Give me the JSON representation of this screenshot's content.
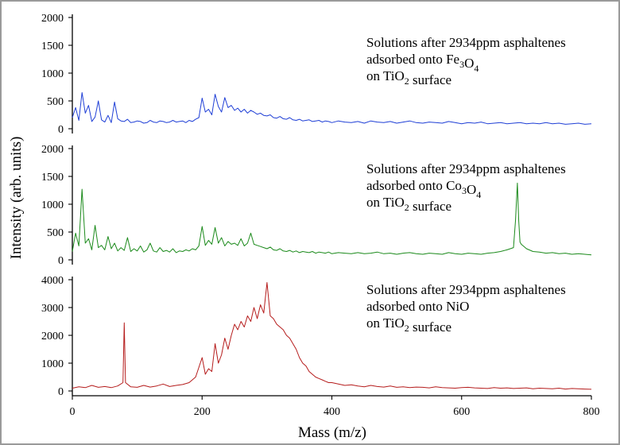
{
  "chart_data": [
    {
      "type": "line",
      "panel": "top",
      "title": "",
      "color": "#1f3fd6",
      "xlim": [
        0,
        800
      ],
      "ylim": [
        0,
        2000
      ],
      "yticks": [
        0,
        500,
        1000,
        1500,
        2000
      ],
      "annotation": [
        "Solutions after 2934ppm asphaltenes",
        "adsorbed onto Fe3O4",
        "on TiO2 surface"
      ],
      "series": [
        {
          "name": "Fe3O4 on TiO2",
          "x": [
            0,
            5,
            10,
            15,
            20,
            25,
            30,
            35,
            40,
            45,
            50,
            55,
            60,
            65,
            70,
            75,
            80,
            85,
            90,
            95,
            100,
            105,
            110,
            115,
            120,
            125,
            130,
            135,
            140,
            145,
            150,
            155,
            160,
            165,
            170,
            175,
            180,
            185,
            190,
            195,
            200,
            205,
            210,
            215,
            220,
            225,
            230,
            235,
            240,
            245,
            250,
            255,
            260,
            265,
            270,
            275,
            280,
            285,
            290,
            295,
            300,
            305,
            310,
            315,
            320,
            325,
            330,
            335,
            340,
            345,
            350,
            355,
            360,
            365,
            370,
            375,
            380,
            385,
            390,
            395,
            400,
            410,
            420,
            430,
            440,
            450,
            460,
            470,
            480,
            490,
            500,
            510,
            520,
            530,
            540,
            550,
            560,
            570,
            580,
            590,
            600,
            610,
            620,
            630,
            640,
            650,
            660,
            670,
            680,
            690,
            700,
            710,
            720,
            730,
            740,
            750,
            760,
            770,
            780,
            790,
            800
          ],
          "y": [
            200,
            380,
            150,
            650,
            280,
            420,
            130,
            210,
            500,
            160,
            120,
            240,
            110,
            480,
            180,
            140,
            130,
            170,
            110,
            120,
            140,
            130,
            100,
            110,
            150,
            120,
            110,
            140,
            130,
            110,
            120,
            150,
            120,
            130,
            140,
            110,
            150,
            130,
            170,
            200,
            550,
            300,
            350,
            250,
            620,
            400,
            300,
            560,
            380,
            420,
            330,
            370,
            300,
            350,
            280,
            330,
            300,
            260,
            280,
            240,
            230,
            250,
            200,
            190,
            220,
            180,
            170,
            200,
            160,
            150,
            170,
            140,
            150,
            160,
            130,
            140,
            150,
            120,
            140,
            130,
            110,
            140,
            120,
            110,
            130,
            100,
            140,
            120,
            110,
            130,
            100,
            120,
            140,
            110,
            100,
            120,
            110,
            100,
            130,
            110,
            90,
            110,
            100,
            120,
            90,
            100,
            110,
            90,
            100,
            110,
            90,
            100,
            90,
            110,
            90,
            100,
            80,
            90,
            100,
            80,
            90
          ]
        }
      ]
    },
    {
      "type": "line",
      "panel": "middle",
      "title": "",
      "color": "#1b8a1b",
      "xlim": [
        0,
        800
      ],
      "ylim": [
        0,
        2000
      ],
      "yticks": [
        0,
        500,
        1000,
        1500,
        2000
      ],
      "annotation": [
        "Solutions after 2934ppm asphaltenes",
        "adsorbed onto Co3O4",
        "on TiO2 surface"
      ],
      "series": [
        {
          "name": "Co3O4 on TiO2",
          "x": [
            0,
            5,
            10,
            15,
            20,
            25,
            30,
            35,
            40,
            45,
            50,
            55,
            60,
            65,
            70,
            75,
            80,
            85,
            90,
            95,
            100,
            105,
            110,
            115,
            120,
            125,
            130,
            135,
            140,
            145,
            150,
            155,
            160,
            165,
            170,
            175,
            180,
            185,
            190,
            195,
            200,
            205,
            210,
            215,
            220,
            225,
            230,
            235,
            240,
            245,
            250,
            255,
            260,
            265,
            270,
            275,
            280,
            285,
            290,
            295,
            300,
            305,
            310,
            315,
            320,
            325,
            330,
            335,
            340,
            345,
            350,
            355,
            360,
            365,
            370,
            375,
            380,
            385,
            390,
            395,
            400,
            410,
            420,
            430,
            440,
            450,
            460,
            470,
            480,
            490,
            500,
            510,
            520,
            530,
            540,
            550,
            560,
            570,
            580,
            590,
            600,
            610,
            620,
            630,
            640,
            650,
            660,
            670,
            680,
            683,
            686,
            688,
            690,
            692,
            695,
            700,
            710,
            720,
            730,
            740,
            750,
            760,
            770,
            780,
            790,
            800
          ],
          "y": [
            150,
            480,
            250,
            1270,
            300,
            380,
            180,
            620,
            220,
            260,
            180,
            420,
            200,
            300,
            160,
            220,
            170,
            400,
            150,
            200,
            160,
            250,
            140,
            180,
            300,
            160,
            140,
            220,
            150,
            170,
            140,
            200,
            130,
            160,
            150,
            180,
            160,
            200,
            180,
            250,
            600,
            260,
            350,
            280,
            580,
            300,
            400,
            250,
            330,
            280,
            300,
            260,
            380,
            250,
            300,
            480,
            280,
            260,
            240,
            220,
            200,
            230,
            180,
            170,
            200,
            160,
            150,
            170,
            140,
            160,
            130,
            150,
            140,
            130,
            150,
            120,
            140,
            130,
            120,
            140,
            110,
            130,
            120,
            110,
            130,
            110,
            120,
            140,
            110,
            120,
            100,
            120,
            130,
            110,
            100,
            120,
            110,
            100,
            130,
            110,
            100,
            120,
            110,
            100,
            120,
            130,
            150,
            180,
            220,
            700,
            1380,
            700,
            320,
            280,
            250,
            200,
            150,
            140,
            120,
            130,
            110,
            120,
            100,
            110,
            100,
            90
          ]
        }
      ]
    },
    {
      "type": "line",
      "panel": "bottom",
      "title": "",
      "color": "#b51c1c",
      "xlim": [
        0,
        800
      ],
      "ylim": [
        0,
        4000
      ],
      "yticks": [
        0,
        1000,
        2000,
        3000,
        4000
      ],
      "annotation": [
        "Solutions after 2934ppm asphaltenes",
        "adsorbed onto NiO",
        "on TiO2 surface"
      ],
      "series": [
        {
          "name": "NiO on TiO2",
          "x": [
            0,
            10,
            20,
            30,
            40,
            50,
            60,
            70,
            78,
            80,
            82,
            90,
            100,
            110,
            120,
            130,
            140,
            150,
            160,
            170,
            180,
            190,
            200,
            205,
            210,
            215,
            220,
            225,
            230,
            235,
            240,
            245,
            250,
            255,
            260,
            265,
            270,
            275,
            280,
            285,
            290,
            295,
            300,
            305,
            310,
            315,
            320,
            325,
            330,
            335,
            340,
            345,
            350,
            355,
            360,
            365,
            370,
            375,
            380,
            385,
            390,
            395,
            400,
            410,
            420,
            430,
            440,
            450,
            460,
            470,
            480,
            490,
            500,
            510,
            520,
            530,
            540,
            550,
            560,
            570,
            580,
            590,
            600,
            610,
            620,
            630,
            640,
            650,
            660,
            670,
            680,
            690,
            700,
            710,
            720,
            730,
            740,
            750,
            760,
            770,
            780,
            790,
            800
          ],
          "y": [
            100,
            150,
            120,
            200,
            130,
            160,
            120,
            180,
            300,
            2450,
            300,
            150,
            130,
            200,
            140,
            180,
            250,
            160,
            200,
            230,
            300,
            500,
            1200,
            600,
            800,
            700,
            1700,
            1000,
            1300,
            1900,
            1500,
            2000,
            2400,
            2200,
            2500,
            2300,
            2700,
            2500,
            3000,
            2600,
            3100,
            2800,
            3900,
            2700,
            2600,
            2400,
            2300,
            2200,
            2000,
            1900,
            1700,
            1500,
            1200,
            1000,
            900,
            700,
            600,
            500,
            450,
            400,
            350,
            300,
            300,
            250,
            200,
            220,
            180,
            150,
            200,
            160,
            140,
            180,
            130,
            150,
            120,
            140,
            130,
            110,
            150,
            120,
            110,
            100,
            120,
            130,
            110,
            100,
            90,
            120,
            100,
            110,
            90,
            100,
            110,
            80,
            100,
            90,
            80,
            100,
            70,
            90,
            80,
            70,
            60
          ]
        }
      ]
    }
  ],
  "shared_axes": {
    "xlabel": "Mass (m/z)",
    "ylabel": "Intensity (arb. units)",
    "xticks": [
      0,
      200,
      400,
      600,
      800
    ]
  }
}
